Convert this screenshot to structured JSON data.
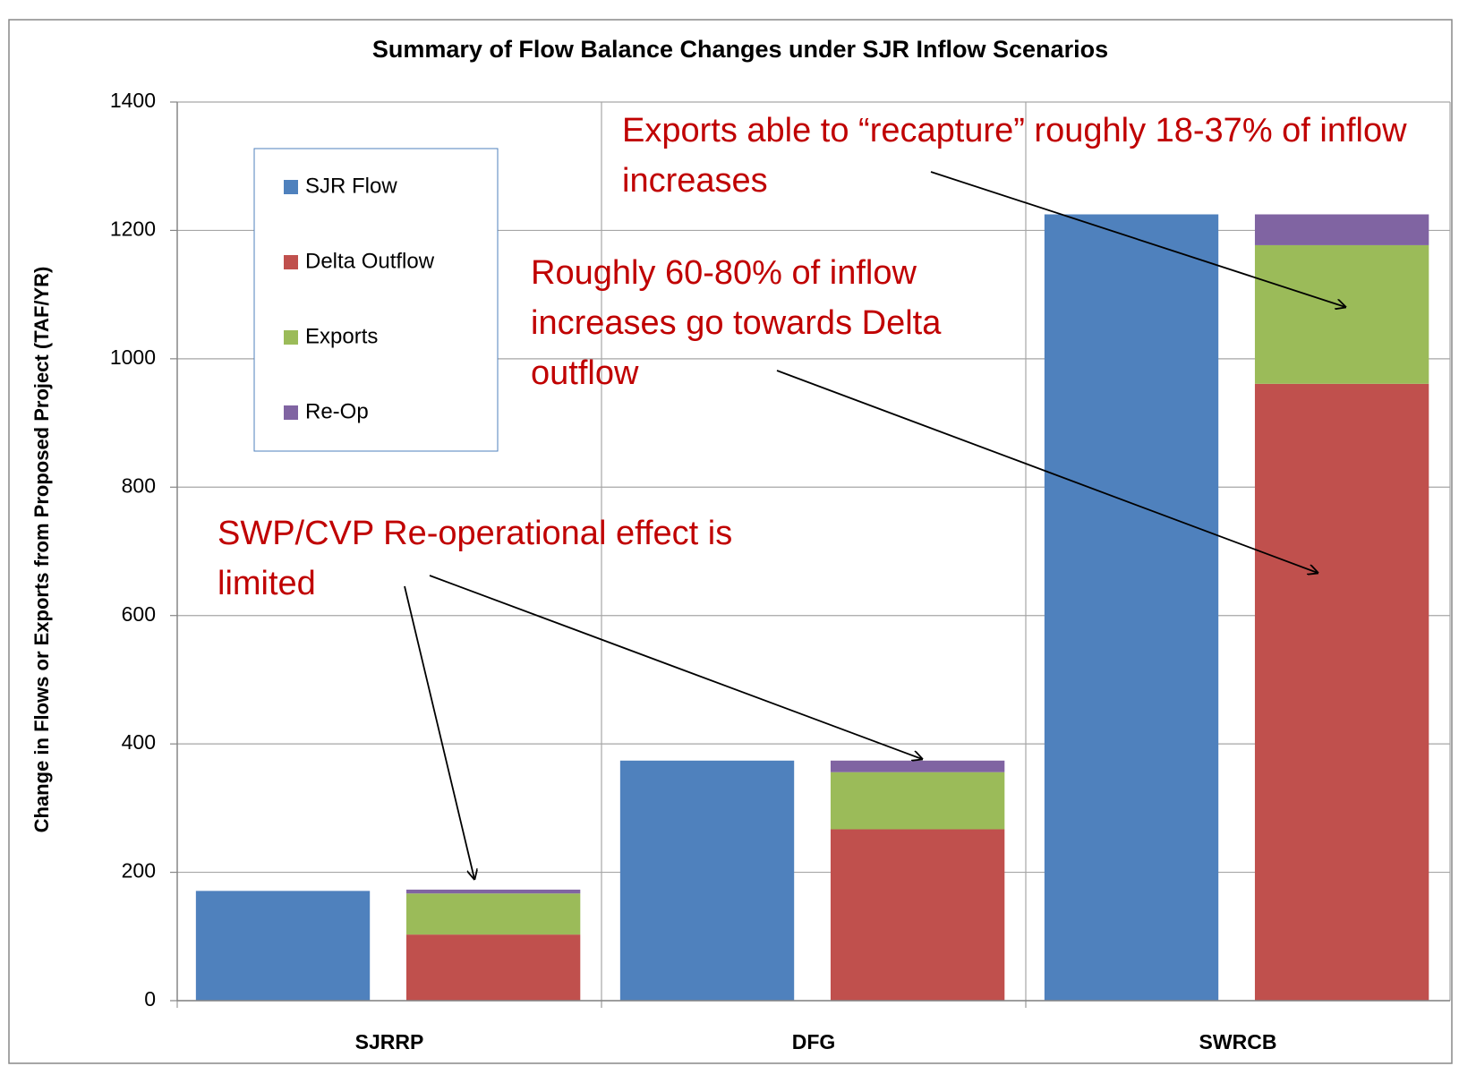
{
  "chart_data": {
    "type": "bar",
    "title": "Summary of Flow Balance Changes under SJR Inflow Scenarios",
    "ylabel": "Change in Flows or Exports from Proposed Project (TAF/YR)",
    "categories": [
      "SJRRP",
      "DFG",
      "SWRCB"
    ],
    "series": [
      {
        "name": "SJR Flow",
        "color": "#4f81bd",
        "values": [
          171,
          374,
          1225
        ]
      },
      {
        "name": "Delta Outflow",
        "color": "#c0504d",
        "values": [
          103,
          267,
          961
        ]
      },
      {
        "name": "Exports",
        "color": "#9bbb59",
        "values": [
          64,
          89,
          216
        ]
      },
      {
        "name": "Re-Op",
        "color": "#8064a2",
        "values": [
          6,
          18,
          48
        ]
      }
    ],
    "ylim": [
      0,
      1400
    ],
    "yticks": [
      0,
      200,
      400,
      600,
      800,
      1000,
      1200,
      1400
    ],
    "grid": true,
    "legend": "upper left",
    "annotations": [
      "Exports able to “recapture” roughly 18-37% of inflow increases",
      "Roughly 60-80% of inflow increases go towards Delta outflow",
      "SWP/CVP Re-operational effect is limited"
    ]
  }
}
